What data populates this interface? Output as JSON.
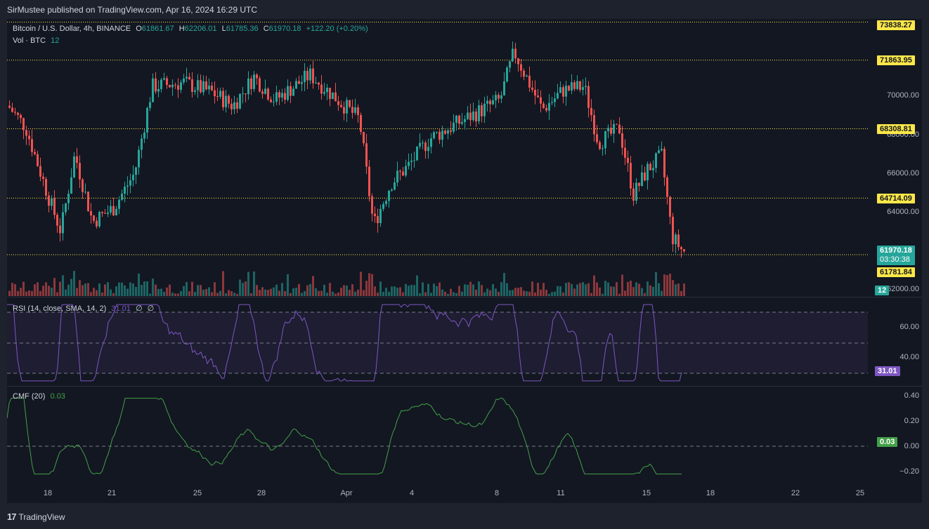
{
  "header": {
    "publish_line": "SirMustee published on TradingView.com, Apr 16, 2024 16:29 UTC"
  },
  "symbol": {
    "name": "Bitcoin / U.S. Dollar, 4h, BINANCE",
    "o_label": "O",
    "o": "61861.67",
    "h_label": "H",
    "h": "62206.01",
    "l_label": "L",
    "l": "61785.36",
    "c_label": "C",
    "c": "61970.18",
    "change": "+122.20 (+0.20%)"
  },
  "volume": {
    "label": "Vol · BTC",
    "value": "12"
  },
  "rsi": {
    "label": "RSI (14, close, SMA, 14, 2)",
    "value": "31.01",
    "extra1": "∅",
    "extra2": "∅",
    "value_tag": "31.01"
  },
  "cmf": {
    "label": "CMF (20)",
    "value": "0.03",
    "value_tag": "0.03"
  },
  "price_axis": [
    "70000.00",
    "68000.00",
    "66000.00",
    "64000.00",
    "62000.00"
  ],
  "rsi_axis": [
    "60.00",
    "40.00"
  ],
  "cmf_axis": [
    "0.40",
    "0.20",
    "0.00",
    "−0.20"
  ],
  "levels": [
    {
      "label": "73838.27",
      "price": 73838.27
    },
    {
      "label": "71863.95",
      "price": 71863.95
    },
    {
      "label": "68308.81",
      "price": 68308.81
    },
    {
      "label": "64714.09",
      "price": 64714.09
    },
    {
      "label": "61781.84",
      "price": 61781.84
    }
  ],
  "last_price": {
    "price": "61970.18",
    "countdown": "03:30:38"
  },
  "volume_tag": "12",
  "x_axis": [
    "18",
    "21",
    "25",
    "28",
    "Apr",
    "4",
    "8",
    "11",
    "15",
    "18",
    "22",
    "25"
  ],
  "footer": {
    "brand": "TradingView",
    "logo": "17"
  },
  "colors": {
    "up": "#26a69a",
    "down": "#ef5350",
    "level": "#fbe748",
    "rsi": "#7e57c2",
    "cmf": "#43a047",
    "bg": "#131722"
  }
}
